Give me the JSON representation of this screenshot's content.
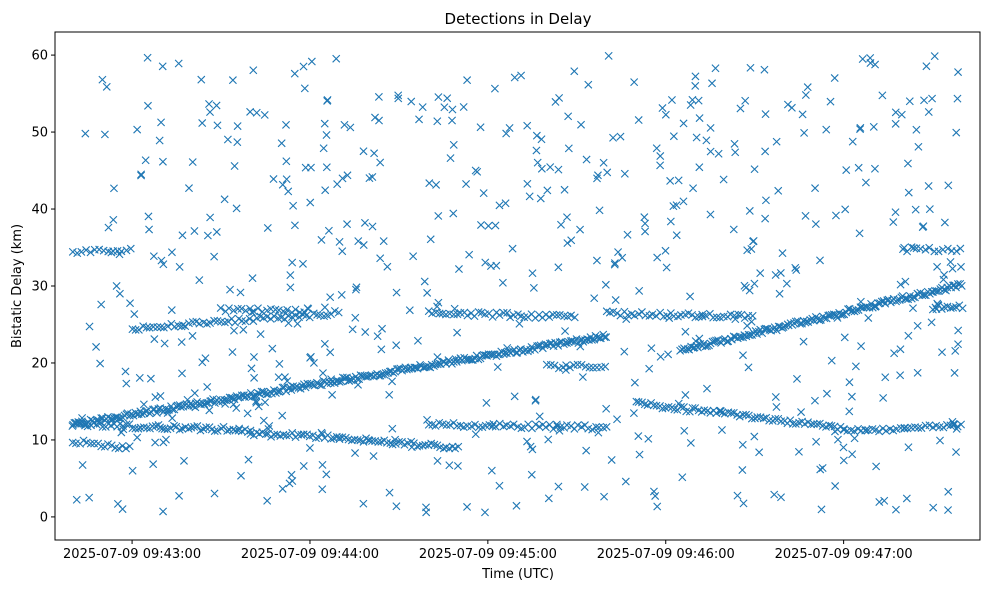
{
  "chart_data": {
    "type": "scatter",
    "title": "Detections in Delay",
    "xlabel": "Time (UTC)",
    "ylabel": "Bistatic Delay (km)",
    "marker": "x",
    "color": "#1f77b4",
    "grid": false,
    "legend": "none",
    "x_time_range": [
      "2025-07-09 09:42:40",
      "2025-07-09 09:47:40"
    ],
    "xlim": [
      "2025-07-09 09:42:34",
      "2025-07-09 09:47:46"
    ],
    "ylim": [
      -3,
      63
    ],
    "x_ticks": [
      {
        "time": "2025-07-09 09:43:00",
        "label": "2025-07-09 09:43:00"
      },
      {
        "time": "2025-07-09 09:44:00",
        "label": "2025-07-09 09:44:00"
      },
      {
        "time": "2025-07-09 09:45:00",
        "label": "2025-07-09 09:45:00"
      },
      {
        "time": "2025-07-09 09:46:00",
        "label": "2025-07-09 09:46:00"
      },
      {
        "time": "2025-07-09 09:47:00",
        "label": "2025-07-09 09:47:00"
      }
    ],
    "y_ticks": [
      0,
      10,
      20,
      30,
      40,
      50,
      60
    ],
    "tracks": [
      {
        "shape": "linear",
        "t_start": "2025-07-09 09:42:40",
        "t_end": "2025-07-09 09:45:40",
        "y_start": 12,
        "y_end": 23.5,
        "step_s": 0.6
      },
      {
        "shape": "linear",
        "t_start": "2025-07-09 09:46:05",
        "t_end": "2025-07-09 09:47:40",
        "y_start": 21.6,
        "y_end": 30.2,
        "step_s": 0.6
      },
      {
        "shape": "linear",
        "t_start": "2025-07-09 09:42:40",
        "t_end": "2025-07-09 09:43:40",
        "y_start": 12,
        "y_end": 11.3,
        "step_s": 1.0
      },
      {
        "shape": "linear",
        "t_start": "2025-07-09 09:43:40",
        "t_end": "2025-07-09 09:44:10",
        "y_start": 10.8,
        "y_end": 10.4,
        "step_s": 1.0
      },
      {
        "shape": "linear",
        "t_start": "2025-07-09 09:44:10",
        "t_end": "2025-07-09 09:44:50",
        "y_start": 10.2,
        "y_end": 9.0,
        "step_s": 1.0
      },
      {
        "shape": "linear",
        "t_start": "2025-07-09 09:42:40",
        "t_end": "2025-07-09 09:43:00",
        "y_start": 9.8,
        "y_end": 9.0,
        "step_s": 1.2
      },
      {
        "shape": "linear",
        "t_start": "2025-07-09 09:44:40",
        "t_end": "2025-07-09 09:45:40",
        "y_start": 12.0,
        "y_end": 11.6,
        "step_s": 1.2
      },
      {
        "shape": "linear",
        "t_start": "2025-07-09 09:45:50",
        "t_end": "2025-07-09 09:47:00",
        "y_start": 14.8,
        "y_end": 11.5,
        "step_s": 1.0
      },
      {
        "shape": "linear",
        "t_start": "2025-07-09 09:47:00",
        "t_end": "2025-07-09 09:47:40",
        "y_start": 11.2,
        "y_end": 11.8,
        "step_s": 1.2
      },
      {
        "shape": "linear",
        "t_start": "2025-07-09 09:42:40",
        "t_end": "2025-07-09 09:43:00",
        "y_start": 34.5,
        "y_end": 34.8,
        "step_s": 1.5
      },
      {
        "shape": "linear",
        "t_start": "2025-07-09 09:47:20",
        "t_end": "2025-07-09 09:47:40",
        "y_start": 34.8,
        "y_end": 34.6,
        "step_s": 1.5
      },
      {
        "shape": "linear",
        "t_start": "2025-07-09 09:43:00",
        "t_end": "2025-07-09 09:44:10",
        "y_start": 24.5,
        "y_end": 26.5,
        "step_s": 1.2
      },
      {
        "shape": "linear",
        "t_start": "2025-07-09 09:44:40",
        "t_end": "2025-07-09 09:45:30",
        "y_start": 26.5,
        "y_end": 26.0,
        "step_s": 1.2
      },
      {
        "shape": "linear",
        "t_start": "2025-07-09 09:45:40",
        "t_end": "2025-07-09 09:46:30",
        "y_start": 26.5,
        "y_end": 26.0,
        "step_s": 1.2
      },
      {
        "shape": "linear",
        "t_start": "2025-07-09 09:47:30",
        "t_end": "2025-07-09 09:47:40",
        "y_start": 27.2,
        "y_end": 27.3,
        "step_s": 1.0
      },
      {
        "shape": "linear",
        "t_start": "2025-07-09 09:45:20",
        "t_end": "2025-07-09 09:45:40",
        "y_start": 19.5,
        "y_end": 19.6,
        "step_s": 1.3
      },
      {
        "shape": "linear",
        "t_start": "2025-07-09 09:43:30",
        "t_end": "2025-07-09 09:44:00",
        "y_start": 27.0,
        "y_end": 26.8,
        "step_s": 1.4
      }
    ],
    "scatter_noise": {
      "count": 620,
      "t_range": [
        "2025-07-09 09:42:40",
        "2025-07-09 09:47:40"
      ],
      "y_range": [
        0.5,
        60
      ]
    }
  }
}
